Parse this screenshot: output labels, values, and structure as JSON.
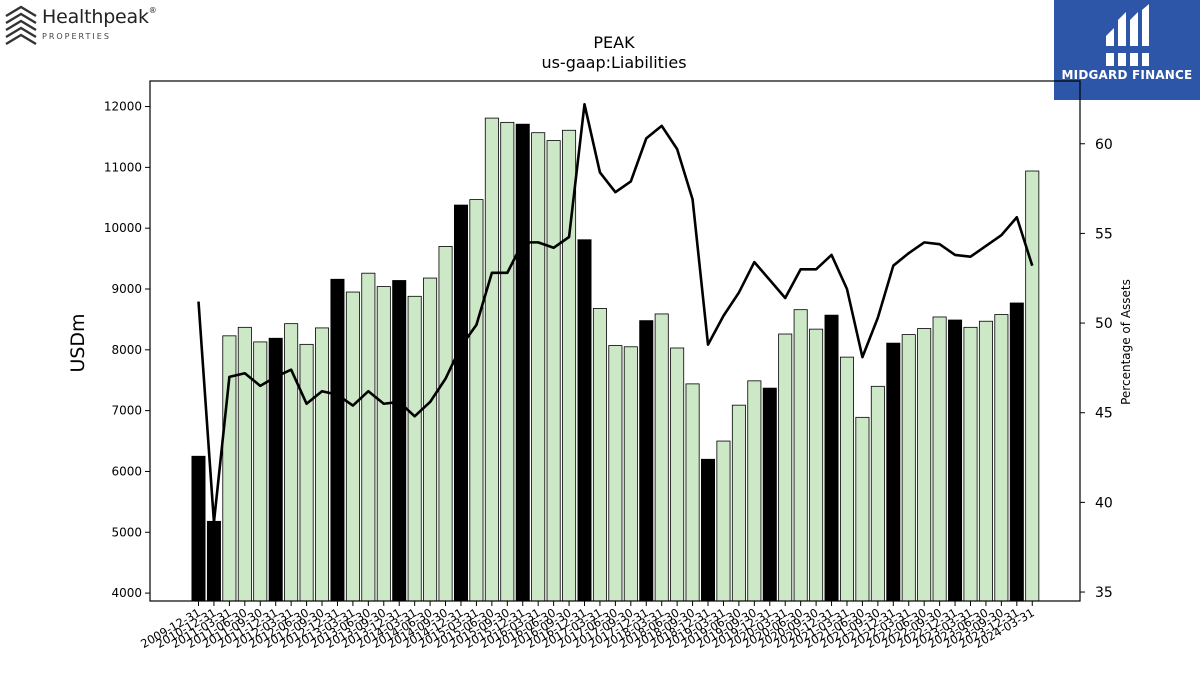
{
  "logo": {
    "name": "Healthpeak",
    "registered": "®",
    "subtitle": "PROPERTIES"
  },
  "brand": {
    "name": "MIDGARD FINANCE",
    "color": "#2d56a8"
  },
  "chart_data": {
    "type": "bar",
    "title": "PEAK",
    "subtitle": "us-gaap:Liabilities",
    "ylabel": "USDm",
    "y2label": "Percentage of Assets",
    "ylim": [
      3870,
      12420
    ],
    "y2lim": [
      34.5,
      63.5
    ],
    "yticks": [
      4000,
      5000,
      6000,
      7000,
      8000,
      9000,
      10000,
      11000,
      12000
    ],
    "y2ticks": [
      35,
      40,
      45,
      50,
      55,
      60
    ],
    "colors": {
      "annual": "#000000",
      "quarterly": "#cce8c6",
      "line": "#000000"
    },
    "categories": [
      "2009-12-31",
      "2010-12-31",
      "2011-03-31",
      "2011-06-30",
      "2011-09-30",
      "2011-12-31",
      "2012-03-31",
      "2012-06-30",
      "2012-09-30",
      "2012-12-31",
      "2013-03-31",
      "2013-06-30",
      "2013-09-30",
      "2013-12-31",
      "2014-03-31",
      "2014-06-30",
      "2014-09-30",
      "2014-12-31",
      "2015-03-31",
      "2015-06-30",
      "2015-09-30",
      "2015-12-31",
      "2016-03-31",
      "2016-06-30",
      "2016-09-30",
      "2016-12-31",
      "2017-03-31",
      "2017-06-30",
      "2017-09-30",
      "2017-12-31",
      "2018-03-31",
      "2018-06-30",
      "2018-09-30",
      "2018-12-31",
      "2019-03-31",
      "2019-06-30",
      "2019-09-30",
      "2019-12-31",
      "2020-03-31",
      "2020-06-30",
      "2020-09-30",
      "2020-12-31",
      "2021-03-31",
      "2021-06-30",
      "2021-09-30",
      "2021-12-31",
      "2022-03-31",
      "2022-06-30",
      "2022-09-30",
      "2022-12-31",
      "2023-03-31",
      "2023-06-30",
      "2023-09-30",
      "2023-12-31",
      "2024-03-31"
    ],
    "annual": [
      true,
      true,
      false,
      false,
      false,
      true,
      false,
      false,
      false,
      true,
      false,
      false,
      false,
      true,
      false,
      false,
      false,
      true,
      false,
      false,
      false,
      true,
      false,
      false,
      false,
      true,
      false,
      false,
      false,
      true,
      false,
      false,
      false,
      true,
      false,
      false,
      false,
      true,
      false,
      false,
      false,
      true,
      false,
      false,
      false,
      true,
      false,
      false,
      false,
      true,
      false,
      false,
      false,
      true,
      false
    ],
    "series": [
      {
        "name": "Liabilities",
        "values": [
          6250,
          5180,
          8230,
          8370,
          8130,
          8190,
          8430,
          8090,
          8360,
          9160,
          8950,
          9260,
          9040,
          9140,
          8880,
          9180,
          9700,
          10380,
          10470,
          11810,
          11740,
          11710,
          11570,
          11440,
          11610,
          9810,
          8680,
          8070,
          8050,
          8480,
          8590,
          8030,
          7440,
          6200,
          6500,
          7090,
          7490,
          7370,
          8260,
          8660,
          8340,
          8570,
          7880,
          6890,
          7400,
          8110,
          8250,
          8350,
          8540,
          8490,
          8370,
          8470,
          8580,
          8770,
          10940
        ]
      },
      {
        "name": "Percentage of Assets",
        "values": [
          51.2,
          38.9,
          47.0,
          47.2,
          46.5,
          47.0,
          47.4,
          45.5,
          46.2,
          46.0,
          45.4,
          46.2,
          45.5,
          45.6,
          44.8,
          45.6,
          46.9,
          48.7,
          49.9,
          52.8,
          52.8,
          54.5,
          54.5,
          54.2,
          54.8,
          62.2,
          58.4,
          57.3,
          57.9,
          60.3,
          61.0,
          59.7,
          56.9,
          48.8,
          50.4,
          51.7,
          53.4,
          52.4,
          51.4,
          53.0,
          53.0,
          53.8,
          51.9,
          48.1,
          50.3,
          53.2,
          53.9,
          54.5,
          54.4,
          53.8,
          53.7,
          54.3,
          54.9,
          55.9,
          53.2
        ]
      }
    ]
  }
}
